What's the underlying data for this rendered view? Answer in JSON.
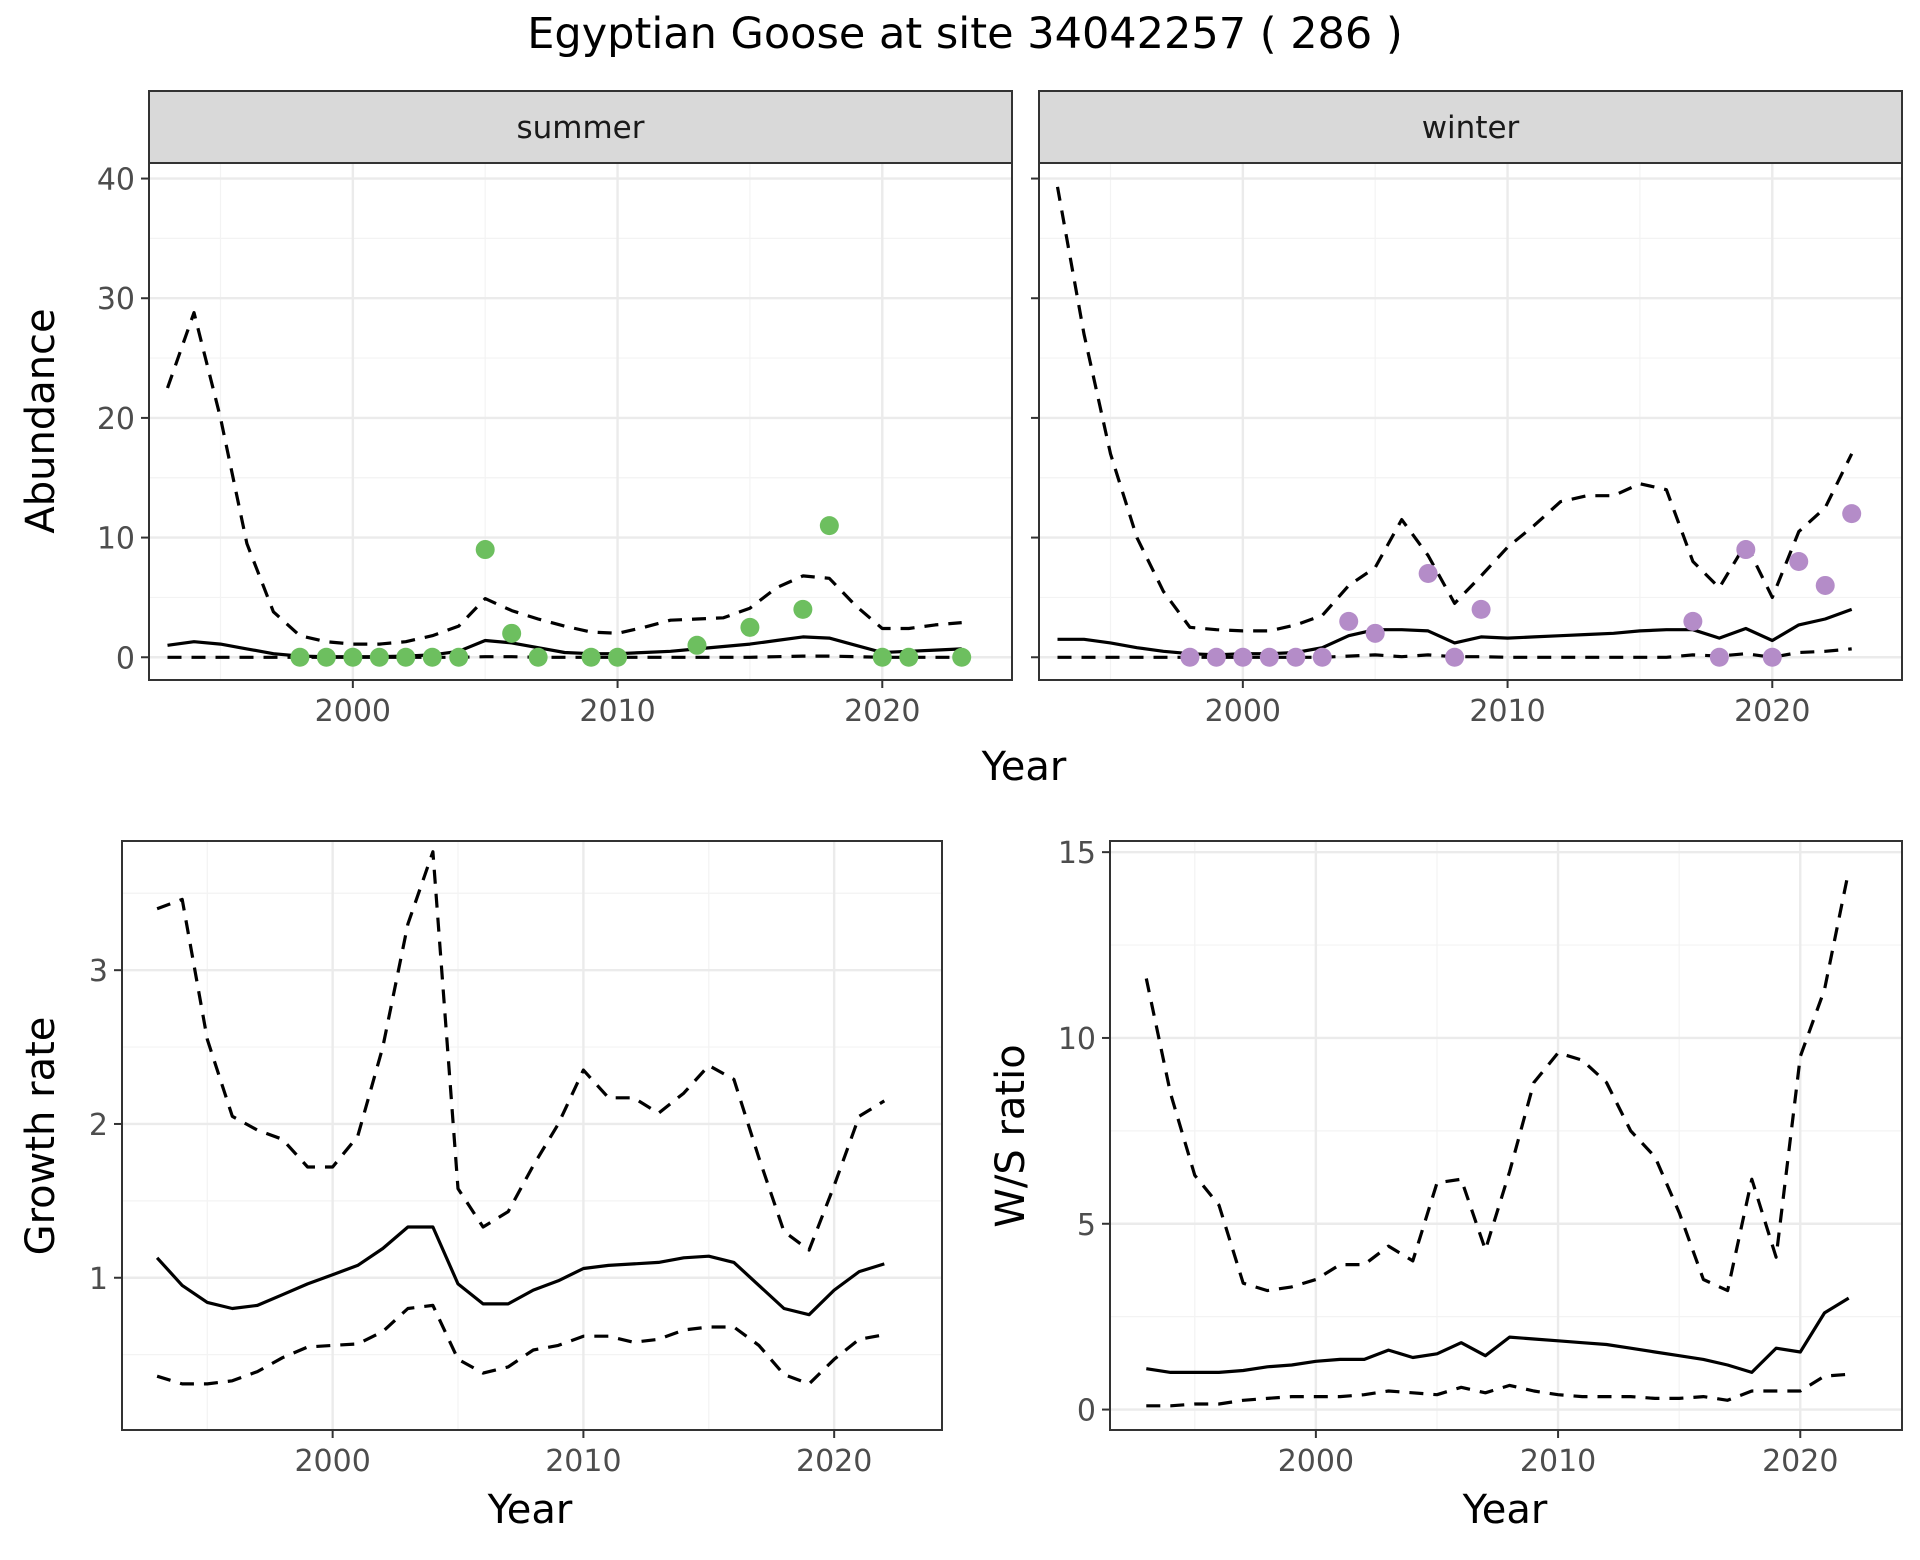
{
  "title": "Egyptian Goose at site 34042257 ( 286 )",
  "chart_data": [
    {
      "type": "line",
      "name": "abundance-summer",
      "facet": "summer",
      "xlabel": "Year",
      "ylabel": "Abundance",
      "xlim": [
        1992.3,
        2024.9
      ],
      "ylim": [
        -1.9,
        41.3
      ],
      "xticks": [
        2000,
        2010,
        2020
      ],
      "yticks": [
        0,
        10,
        20,
        30,
        40
      ],
      "show_y_labels": true,
      "grid": true,
      "point_color": "#6dbf5f",
      "x": [
        1993,
        1994,
        1995,
        1996,
        1997,
        1998,
        1999,
        2000,
        2001,
        2002,
        2003,
        2004,
        2005,
        2006,
        2007,
        2008,
        2009,
        2010,
        2011,
        2012,
        2013,
        2014,
        2015,
        2016,
        2017,
        2018,
        2019,
        2020,
        2021,
        2022,
        2023
      ],
      "median": [
        1.0,
        1.3,
        1.1,
        0.7,
        0.3,
        0.1,
        0.05,
        0.05,
        0.05,
        0.1,
        0.2,
        0.5,
        1.4,
        1.2,
        0.8,
        0.4,
        0.3,
        0.3,
        0.4,
        0.5,
        0.7,
        0.9,
        1.1,
        1.4,
        1.7,
        1.6,
        1.0,
        0.4,
        0.5,
        0.6,
        0.7
      ],
      "upper": [
        22.5,
        28.8,
        20.0,
        9.5,
        3.8,
        1.8,
        1.3,
        1.1,
        1.1,
        1.3,
        1.8,
        2.6,
        4.9,
        3.9,
        3.2,
        2.6,
        2.1,
        2.0,
        2.5,
        3.1,
        3.2,
        3.3,
        4.1,
        5.8,
        6.8,
        6.6,
        4.3,
        2.4,
        2.4,
        2.7,
        2.9
      ],
      "lower": [
        0,
        0,
        0,
        0,
        0,
        0,
        0,
        0,
        0,
        0,
        0,
        0,
        0.05,
        0.05,
        0,
        0,
        0,
        0,
        0,
        0,
        0,
        0,
        0,
        0.05,
        0.1,
        0.1,
        0.05,
        0,
        0,
        0,
        0
      ],
      "points": {
        "x": [
          1998,
          1999,
          2000,
          2001,
          2002,
          2003,
          2004,
          2005,
          2006,
          2007,
          2009,
          2010,
          2013,
          2015,
          2017,
          2018,
          2020,
          2021,
          2023
        ],
        "y": [
          0,
          0,
          0,
          0,
          0,
          0,
          0,
          9,
          2,
          0,
          0,
          0,
          1,
          2.5,
          4,
          11,
          0,
          0,
          0
        ]
      }
    },
    {
      "type": "line",
      "name": "abundance-winter",
      "facet": "winter",
      "xlabel": "Year",
      "ylabel": "",
      "xlim": [
        1992.3,
        2024.9
      ],
      "ylim": [
        -1.9,
        41.3
      ],
      "xticks": [
        2000,
        2010,
        2020
      ],
      "yticks": [
        0,
        10,
        20,
        30,
        40
      ],
      "show_y_labels": false,
      "grid": true,
      "point_color": "#b48cc8",
      "x": [
        1993,
        1994,
        1995,
        1996,
        1997,
        1998,
        1999,
        2000,
        2001,
        2002,
        2003,
        2004,
        2005,
        2006,
        2007,
        2008,
        2009,
        2010,
        2011,
        2012,
        2013,
        2014,
        2015,
        2016,
        2017,
        2018,
        2019,
        2020,
        2021,
        2022,
        2023
      ],
      "median": [
        1.5,
        1.5,
        1.2,
        0.8,
        0.5,
        0.3,
        0.2,
        0.3,
        0.3,
        0.4,
        0.8,
        1.8,
        2.3,
        2.3,
        2.2,
        1.2,
        1.7,
        1.6,
        1.7,
        1.8,
        1.9,
        2.0,
        2.2,
        2.3,
        2.3,
        1.6,
        2.4,
        1.4,
        2.7,
        3.2,
        4.0
      ],
      "upper": [
        39.3,
        27.0,
        17.0,
        10.0,
        5.5,
        2.5,
        2.3,
        2.2,
        2.2,
        2.7,
        3.5,
        6.0,
        7.5,
        11.5,
        8.5,
        4.5,
        6.8,
        9.2,
        11.0,
        13.0,
        13.5,
        13.5,
        14.5,
        14.0,
        8.0,
        5.8,
        9.5,
        5.0,
        10.5,
        12.5,
        17.0
      ],
      "lower": [
        0,
        0,
        0,
        0,
        0,
        0,
        0,
        0,
        0,
        0,
        0,
        0.1,
        0.2,
        0.05,
        0.2,
        0.05,
        0.05,
        0,
        0,
        0,
        0,
        0,
        0,
        0,
        0.2,
        0.1,
        0.3,
        0,
        0.4,
        0.5,
        0.7
      ],
      "points": {
        "x": [
          1998,
          1999,
          2000,
          2001,
          2002,
          2003,
          2004,
          2005,
          2007,
          2008,
          2009,
          2017,
          2018,
          2019,
          2020,
          2021,
          2022,
          2023
        ],
        "y": [
          0,
          0,
          0,
          0,
          0,
          0,
          3,
          2,
          7,
          0,
          4,
          3,
          0,
          9,
          0,
          8,
          6,
          12
        ]
      }
    },
    {
      "type": "line",
      "name": "growth-rate",
      "xlabel": "Year",
      "ylabel": "Growth rate",
      "xlim": [
        1991.6,
        2024.3
      ],
      "ylim": [
        0.01,
        3.84
      ],
      "xticks": [
        2000,
        2010,
        2020
      ],
      "yticks": [
        1,
        2,
        3
      ],
      "show_y_labels": true,
      "grid": true,
      "x": [
        1993,
        1994,
        1995,
        1996,
        1997,
        1998,
        1999,
        2000,
        2001,
        2002,
        2003,
        2004,
        2005,
        2006,
        2007,
        2008,
        2009,
        2010,
        2011,
        2012,
        2013,
        2014,
        2015,
        2016,
        2017,
        2018,
        2019,
        2020,
        2021,
        2022
      ],
      "median": [
        1.13,
        0.95,
        0.84,
        0.8,
        0.82,
        0.89,
        0.96,
        1.02,
        1.08,
        1.19,
        1.33,
        1.33,
        0.96,
        0.83,
        0.83,
        0.92,
        0.98,
        1.06,
        1.08,
        1.09,
        1.1,
        1.13,
        1.14,
        1.1,
        0.95,
        0.8,
        0.76,
        0.92,
        1.04,
        1.09
      ],
      "upper": [
        3.4,
        3.46,
        2.55,
        2.05,
        1.96,
        1.9,
        1.72,
        1.72,
        1.92,
        2.5,
        3.3,
        3.77,
        1.58,
        1.33,
        1.43,
        1.73,
        2.0,
        2.35,
        2.17,
        2.17,
        2.07,
        2.2,
        2.38,
        2.29,
        1.78,
        1.3,
        1.18,
        1.6,
        2.05,
        2.15
      ],
      "lower": [
        0.36,
        0.31,
        0.31,
        0.33,
        0.39,
        0.48,
        0.55,
        0.56,
        0.57,
        0.65,
        0.8,
        0.82,
        0.47,
        0.38,
        0.42,
        0.53,
        0.56,
        0.62,
        0.62,
        0.58,
        0.6,
        0.66,
        0.68,
        0.68,
        0.56,
        0.37,
        0.31,
        0.47,
        0.6,
        0.63
      ]
    },
    {
      "type": "line",
      "name": "ws-ratio",
      "xlabel": "Year",
      "ylabel": "W/S ratio",
      "xlim": [
        1991.5,
        2024.2
      ],
      "ylim": [
        -0.55,
        15.3
      ],
      "xticks": [
        2000,
        2010,
        2020
      ],
      "yticks": [
        0,
        5,
        10,
        15
      ],
      "show_y_labels": true,
      "grid": true,
      "x": [
        1993,
        1994,
        1995,
        1996,
        1997,
        1998,
        1999,
        2000,
        2001,
        2002,
        2003,
        2004,
        2005,
        2006,
        2007,
        2008,
        2009,
        2010,
        2011,
        2012,
        2013,
        2014,
        2015,
        2016,
        2017,
        2018,
        2019,
        2020,
        2021,
        2022
      ],
      "median": [
        1.1,
        1.0,
        1.0,
        1.0,
        1.05,
        1.15,
        1.2,
        1.3,
        1.35,
        1.35,
        1.6,
        1.4,
        1.5,
        1.8,
        1.45,
        1.95,
        1.9,
        1.85,
        1.8,
        1.75,
        1.65,
        1.55,
        1.45,
        1.35,
        1.2,
        1.0,
        1.65,
        1.55,
        2.6,
        3.0
      ],
      "upper": [
        11.6,
        8.5,
        6.3,
        5.5,
        3.4,
        3.2,
        3.3,
        3.5,
        3.9,
        3.9,
        4.4,
        4.0,
        6.1,
        6.2,
        4.3,
        6.4,
        8.8,
        9.6,
        9.4,
        8.8,
        7.5,
        6.8,
        5.3,
        3.5,
        3.2,
        6.2,
        4.1,
        9.5,
        11.3,
        14.5
      ],
      "lower": [
        0.1,
        0.1,
        0.15,
        0.15,
        0.25,
        0.3,
        0.35,
        0.35,
        0.35,
        0.4,
        0.5,
        0.45,
        0.4,
        0.6,
        0.45,
        0.65,
        0.5,
        0.4,
        0.35,
        0.35,
        0.35,
        0.3,
        0.3,
        0.35,
        0.25,
        0.5,
        0.5,
        0.5,
        0.9,
        0.95
      ]
    }
  ]
}
